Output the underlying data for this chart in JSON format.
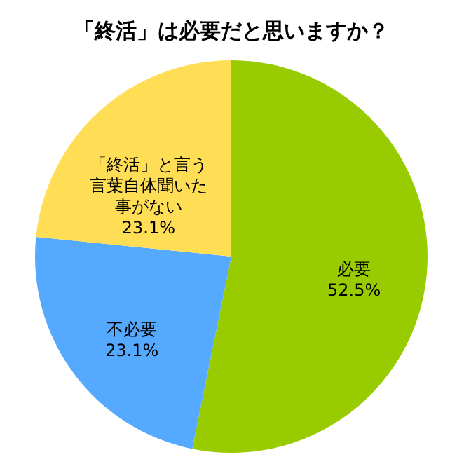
{
  "chart_data": {
    "type": "pie",
    "title": "「終活」は必要だと思いますか？",
    "categories": [
      "必要",
      "不必要",
      "「終活」と言う言葉自体聞いた事がない"
    ],
    "values": [
      52.5,
      23.1,
      23.1
    ],
    "value_labels": [
      "52.5%",
      "23.1%",
      "23.1%"
    ],
    "colors": [
      "#99cc00",
      "#55aaff",
      "#ffdd55"
    ],
    "legend": false
  }
}
